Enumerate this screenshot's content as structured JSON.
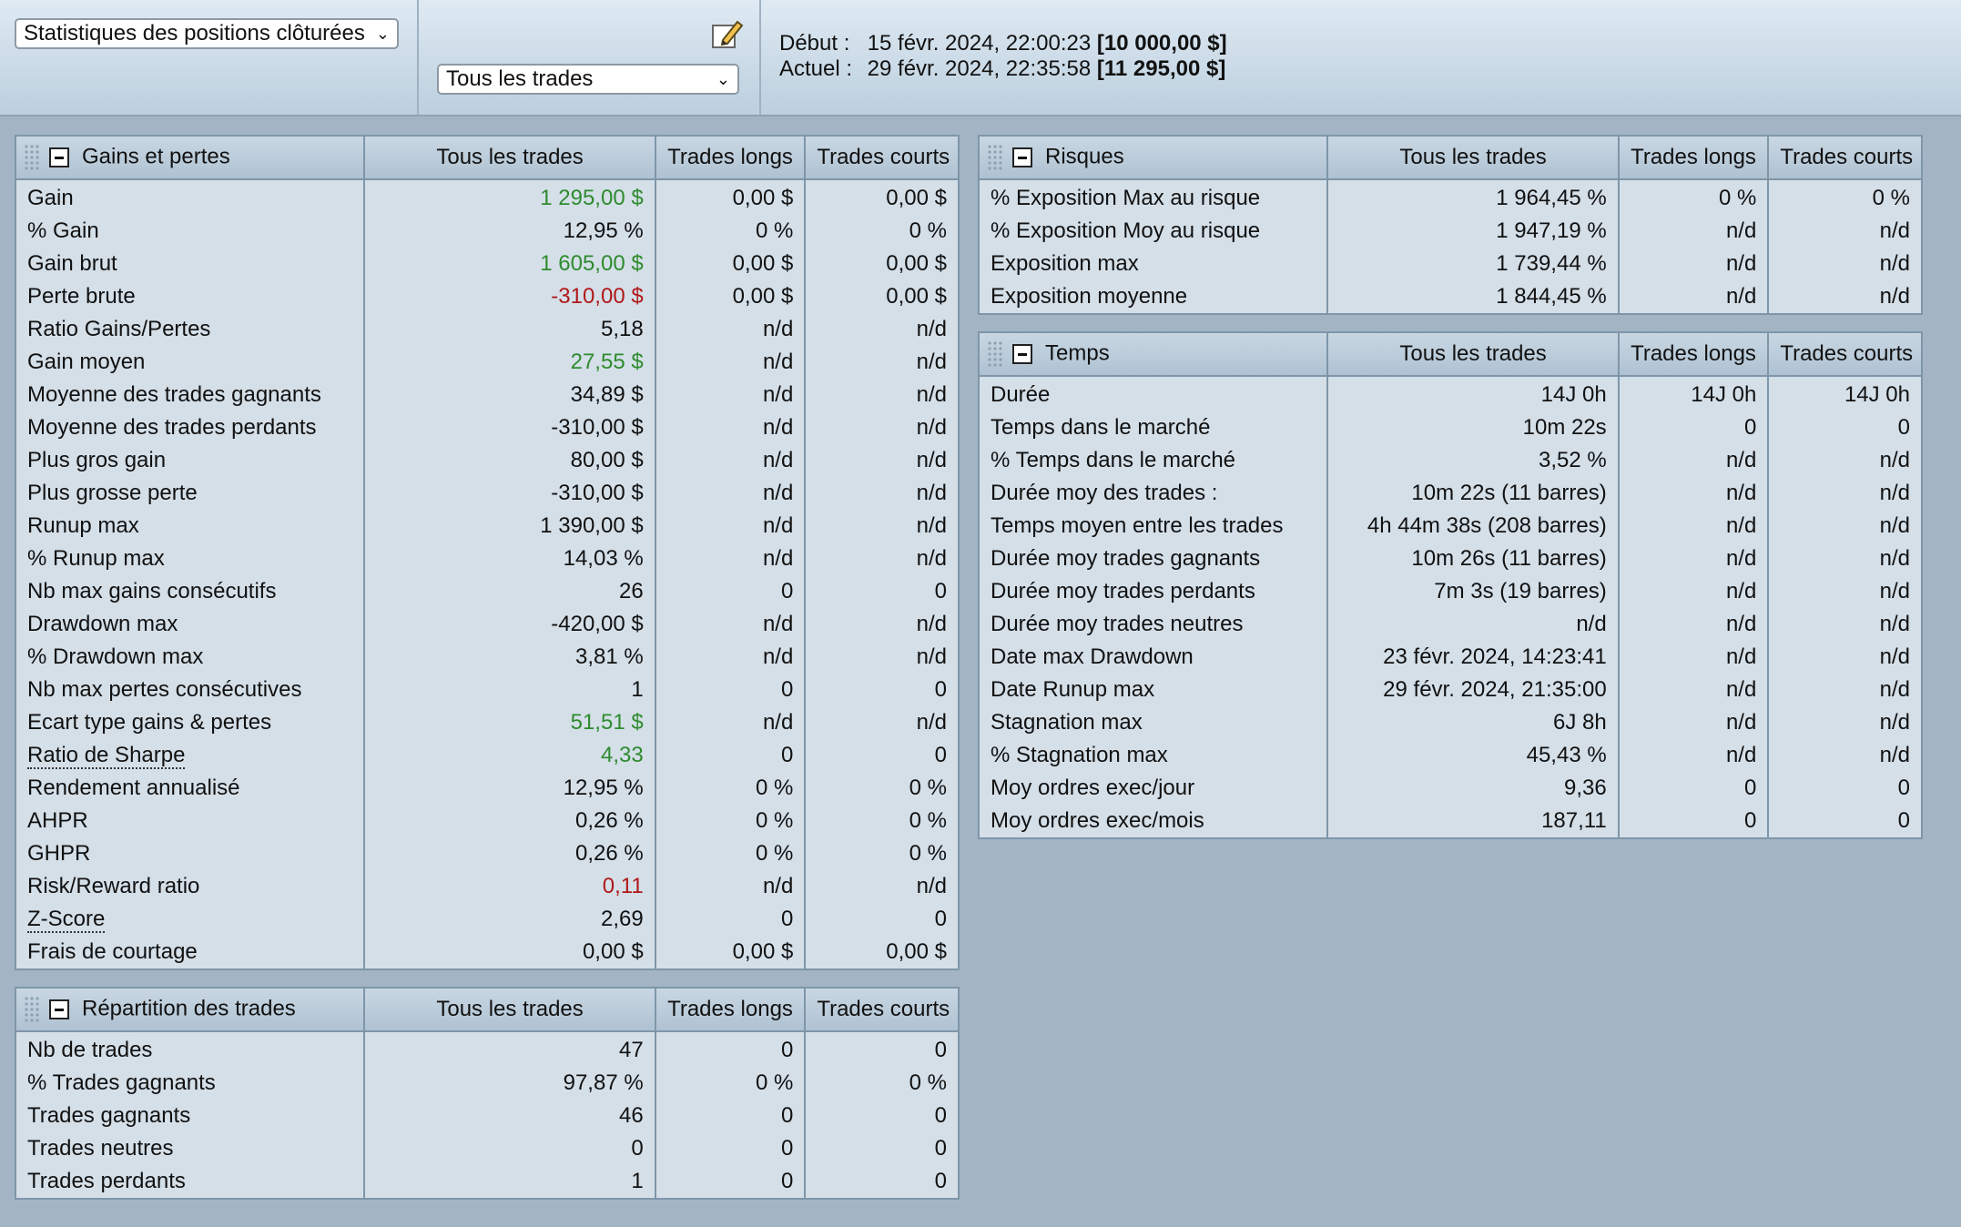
{
  "toolbar": {
    "view_select": "Statistiques des positions clôturées",
    "filter_select": "Tous les trades",
    "start_label": "Début :",
    "start_date": "15 févr. 2024, 22:00:23",
    "start_balance": "[10 000,00 $]",
    "current_label": "Actuel :",
    "current_date": "29 févr. 2024, 22:35:58",
    "current_balance": "[11 295,00 $]",
    "edit_icon": "pencil-icon"
  },
  "columns": [
    "Tous les trades",
    "Trades longs",
    "Trades courts"
  ],
  "gains": {
    "title": "Gains et pertes",
    "rows": [
      {
        "label": "Gain",
        "all": "1 295,00 $",
        "long": "0,00 $",
        "short": "0,00 $",
        "color": "green"
      },
      {
        "label": "% Gain",
        "all": "12,95 %",
        "long": "0 %",
        "short": "0 %"
      },
      {
        "label": "Gain brut",
        "all": "1 605,00 $",
        "long": "0,00 $",
        "short": "0,00 $",
        "color": "green"
      },
      {
        "label": "Perte brute",
        "all": "-310,00 $",
        "long": "0,00 $",
        "short": "0,00 $",
        "color": "red"
      },
      {
        "label": "Ratio Gains/Pertes",
        "all": "5,18",
        "long": "n/d",
        "short": "n/d"
      },
      {
        "label": "Gain moyen",
        "all": "27,55 $",
        "long": "n/d",
        "short": "n/d",
        "color": "green"
      },
      {
        "label": "Moyenne des trades gagnants",
        "all": "34,89 $",
        "long": "n/d",
        "short": "n/d"
      },
      {
        "label": "Moyenne des trades perdants",
        "all": "-310,00 $",
        "long": "n/d",
        "short": "n/d"
      },
      {
        "label": "Plus gros gain",
        "all": "80,00 $",
        "long": "n/d",
        "short": "n/d"
      },
      {
        "label": "Plus grosse perte",
        "all": "-310,00 $",
        "long": "n/d",
        "short": "n/d"
      },
      {
        "label": "Runup max",
        "all": "1 390,00 $",
        "long": "n/d",
        "short": "n/d"
      },
      {
        "label": "% Runup max",
        "all": "14,03 %",
        "long": "n/d",
        "short": "n/d"
      },
      {
        "label": "Nb max gains consécutifs",
        "all": "26",
        "long": "0",
        "short": "0"
      },
      {
        "label": "Drawdown max",
        "all": "-420,00 $",
        "long": "n/d",
        "short": "n/d"
      },
      {
        "label": "% Drawdown max",
        "all": "3,81 %",
        "long": "n/d",
        "short": "n/d"
      },
      {
        "label": "Nb max pertes consécutives",
        "all": "1",
        "long": "0",
        "short": "0"
      },
      {
        "label": "Ecart type gains & pertes",
        "all": "51,51 $",
        "long": "n/d",
        "short": "n/d",
        "color": "green"
      },
      {
        "label": "Ratio de Sharpe",
        "all": "4,33",
        "long": "0",
        "short": "0",
        "color": "green",
        "link": true
      },
      {
        "label": "Rendement annualisé",
        "all": "12,95 %",
        "long": "0 %",
        "short": "0 %"
      },
      {
        "label": "AHPR",
        "all": "0,26 %",
        "long": "0 %",
        "short": "0 %"
      },
      {
        "label": "GHPR",
        "all": "0,26 %",
        "long": "0 %",
        "short": "0 %"
      },
      {
        "label": "Risk/Reward ratio",
        "all": "0,11",
        "long": "n/d",
        "short": "n/d",
        "color": "red"
      },
      {
        "label": "Z-Score",
        "all": "2,69",
        "long": "0",
        "short": "0",
        "link": true
      },
      {
        "label": "Frais de courtage",
        "all": "0,00 $",
        "long": "0,00 $",
        "short": "0,00 $"
      }
    ]
  },
  "repartition": {
    "title": "Répartition des trades",
    "rows": [
      {
        "label": "Nb de trades",
        "all": "47",
        "long": "0",
        "short": "0"
      },
      {
        "label": "% Trades gagnants",
        "all": "97,87 %",
        "long": "0 %",
        "short": "0 %"
      },
      {
        "label": "Trades gagnants",
        "all": "46",
        "long": "0",
        "short": "0"
      },
      {
        "label": "Trades neutres",
        "all": "0",
        "long": "0",
        "short": "0"
      },
      {
        "label": "Trades perdants",
        "all": "1",
        "long": "0",
        "short": "0"
      }
    ]
  },
  "risques": {
    "title": "Risques",
    "rows": [
      {
        "label": "% Exposition Max au risque",
        "all": "1 964,45 %",
        "long": "0 %",
        "short": "0 %"
      },
      {
        "label": "% Exposition Moy au risque",
        "all": "1 947,19 %",
        "long": "n/d",
        "short": "n/d"
      },
      {
        "label": "Exposition max",
        "all": "1 739,44 %",
        "long": "n/d",
        "short": "n/d"
      },
      {
        "label": "Exposition moyenne",
        "all": "1 844,45 %",
        "long": "n/d",
        "short": "n/d"
      }
    ]
  },
  "temps": {
    "title": "Temps",
    "rows": [
      {
        "label": "Durée",
        "all": "14J 0h",
        "long": "14J 0h",
        "short": "14J 0h"
      },
      {
        "label": "Temps dans le marché",
        "all": "10m 22s",
        "long": "0",
        "short": "0"
      },
      {
        "label": "% Temps dans le marché",
        "all": "3,52 %",
        "long": "n/d",
        "short": "n/d"
      },
      {
        "label": "Durée moy des trades :",
        "all": "10m 22s (11 barres)",
        "long": "n/d",
        "short": "n/d"
      },
      {
        "label": "Temps moyen entre les trades",
        "all": "4h 44m 38s (208 barres)",
        "long": "n/d",
        "short": "n/d"
      },
      {
        "label": "Durée moy trades gagnants",
        "all": "10m 26s (11 barres)",
        "long": "n/d",
        "short": "n/d"
      },
      {
        "label": "Durée moy trades perdants",
        "all": "7m 3s (19 barres)",
        "long": "n/d",
        "short": "n/d"
      },
      {
        "label": "Durée moy trades neutres",
        "all": "n/d",
        "long": "n/d",
        "short": "n/d"
      },
      {
        "label": "Date max Drawdown",
        "all": "23 févr. 2024, 14:23:41",
        "long": "n/d",
        "short": "n/d"
      },
      {
        "label": "Date Runup max",
        "all": "29 févr. 2024, 21:35:00",
        "long": "n/d",
        "short": "n/d"
      },
      {
        "label": "Stagnation max",
        "all": "6J 8h",
        "long": "n/d",
        "short": "n/d"
      },
      {
        "label": "% Stagnation max",
        "all": "45,43 %",
        "long": "n/d",
        "short": "n/d"
      },
      {
        "label": "Moy ordres exec/jour",
        "all": "9,36",
        "long": "0",
        "short": "0"
      },
      {
        "label": "Moy ordres exec/mois",
        "all": "187,11",
        "long": "0",
        "short": "0"
      }
    ]
  }
}
